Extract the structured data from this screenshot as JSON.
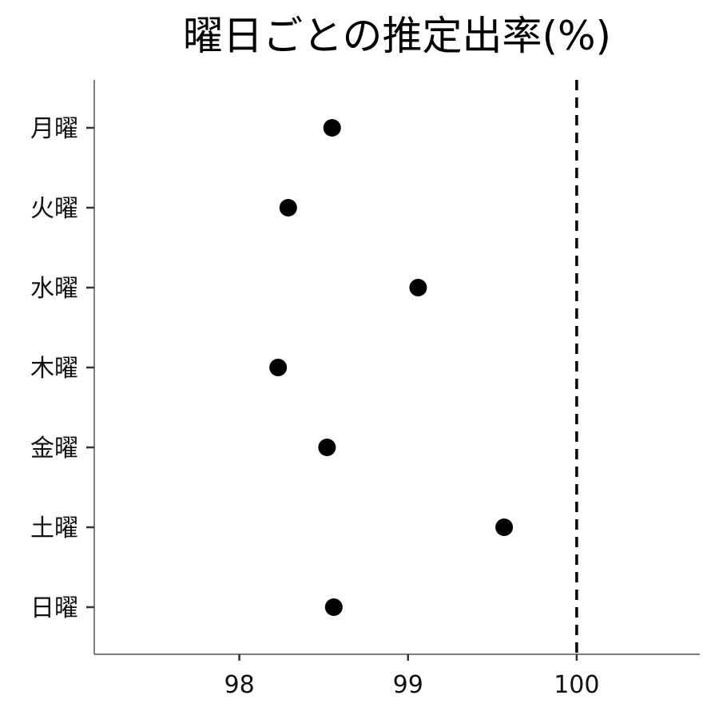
{
  "chart_data": {
    "type": "scatter",
    "title": "曜日ごとの推定出率(%)",
    "xlabel": "",
    "ylabel": "",
    "categories": [
      "月曜",
      "火曜",
      "水曜",
      "木曜",
      "金曜",
      "土曜",
      "日曜"
    ],
    "values": [
      98.55,
      98.29,
      99.06,
      98.23,
      98.52,
      99.57,
      98.56
    ],
    "xlim": [
      97.14,
      100.73
    ],
    "xticks": [
      98,
      99,
      100
    ],
    "xtick_labels": [
      "98",
      "99",
      "100"
    ],
    "reference_line": {
      "x": 100,
      "style": "dashed"
    },
    "grid": false,
    "legend": "none",
    "point_color": "#000000",
    "axis_color": "#555555",
    "reference_line_color": "#000000"
  }
}
